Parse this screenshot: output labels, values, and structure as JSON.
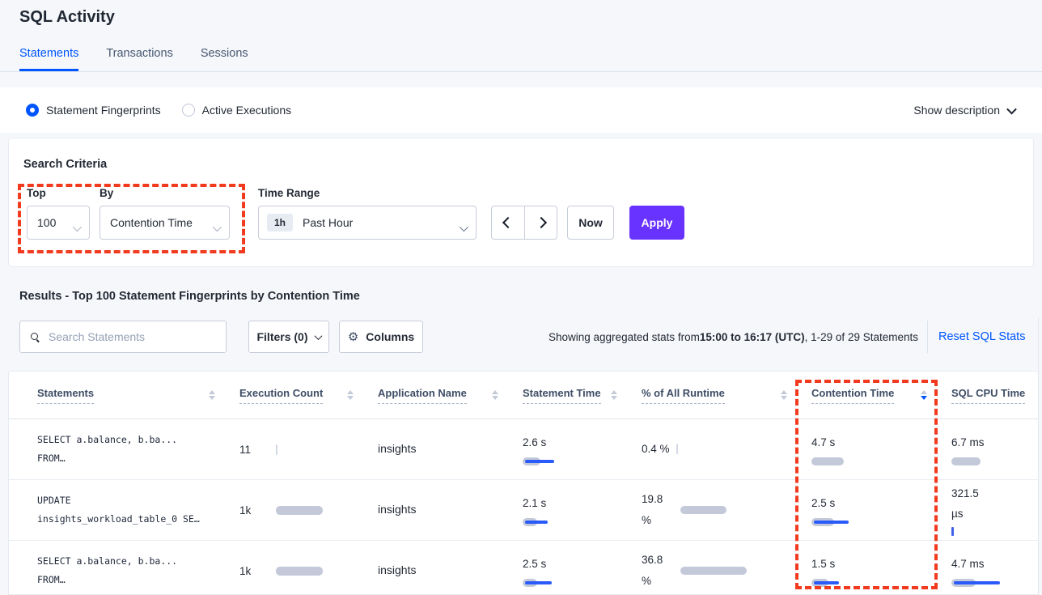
{
  "page": {
    "title": "SQL Activity"
  },
  "tabs": [
    {
      "label": "Statements",
      "active": true
    },
    {
      "label": "Transactions",
      "active": false
    },
    {
      "label": "Sessions",
      "active": false
    }
  ],
  "view_toggle": {
    "options": [
      {
        "label": "Statement Fingerprints",
        "selected": true
      },
      {
        "label": "Active Executions",
        "selected": false
      }
    ],
    "show_description_label": "Show description"
  },
  "search_criteria": {
    "heading": "Search Criteria",
    "top_label": "Top",
    "top_value": "100",
    "by_label": "By",
    "by_value": "Contention Time",
    "time_range_label": "Time Range",
    "time_range_badge": "1h",
    "time_range_value": "Past Hour",
    "now_label": "Now",
    "apply_label": "Apply"
  },
  "results": {
    "heading": "Results - Top 100 Statement Fingerprints by Contention Time",
    "search_placeholder": "Search Statements",
    "filters_label": "Filters (0)",
    "columns_label": "Columns",
    "stats_prefix": "Showing aggregated stats from ",
    "stats_range": "15:00 to 16:17 (UTC)",
    "stats_suffix": ", 1-29 of 29 Statements",
    "reset_label": "Reset SQL Stats"
  },
  "table": {
    "columns": [
      {
        "label": "Statements",
        "sort": "none"
      },
      {
        "label": "Execution Count",
        "sort": "none"
      },
      {
        "label": "Application Name",
        "sort": "none"
      },
      {
        "label": "Statement Time",
        "sort": "none"
      },
      {
        "label": "% of All Runtime",
        "sort": "none"
      },
      {
        "label": "Contention Time",
        "sort": "desc"
      },
      {
        "label": "SQL CPU Time",
        "sort": "hidden"
      }
    ],
    "rows": [
      {
        "statement_lines": [
          "SELECT a.balance, b.ba...",
          "FROM…"
        ],
        "execution_count": {
          "value": "11",
          "tick": "gray"
        },
        "application_name": "insights",
        "statement_time": {
          "value": "2.6 s",
          "bar_gray": 22,
          "bar_blue": 36
        },
        "percent_runtime": {
          "value": "0.4 %",
          "tick": "gray"
        },
        "contention_time": {
          "value": "4.7 s",
          "bar_gray": 40
        },
        "sql_cpu_time": {
          "value": "6.7 ms",
          "bar_gray": 36
        }
      },
      {
        "statement_lines": [
          "UPDATE",
          "insights_workload_table_0 SE…"
        ],
        "execution_count": {
          "value": "1k",
          "bar_gray": 58
        },
        "application_name": "insights",
        "statement_time": {
          "value": "2.1 s",
          "bar_gray": 18,
          "bar_blue": 28
        },
        "percent_runtime": {
          "value": "19.8 %",
          "bar_gray": 57
        },
        "contention_time": {
          "value": "2.5 s",
          "bar_gray": 28,
          "bar_blue": 43
        },
        "sql_cpu_time": {
          "value": "321.5 µs",
          "tick": "blue"
        }
      },
      {
        "statement_lines": [
          "SELECT a.balance, b.ba...",
          "FROM…"
        ],
        "execution_count": {
          "value": "1k",
          "bar_gray": 58
        },
        "application_name": "insights",
        "statement_time": {
          "value": "2.5 s",
          "bar_gray": 18,
          "bar_blue": 33
        },
        "percent_runtime": {
          "value": "36.8 %",
          "bar_gray": 82
        },
        "contention_time": {
          "value": "1.5 s",
          "bar_gray": 21,
          "bar_blue": 31
        },
        "sql_cpu_time": {
          "value": "4.7 ms",
          "bar_gray": 30,
          "bar_blue": 57
        }
      }
    ]
  },
  "colors": {
    "accent_blue": "#0055ff",
    "apply_purple": "#6933ff",
    "bar_gray": "#c3c9d9",
    "bar_blue": "#2a5bf8",
    "annotation_red": "#f13a1e"
  }
}
